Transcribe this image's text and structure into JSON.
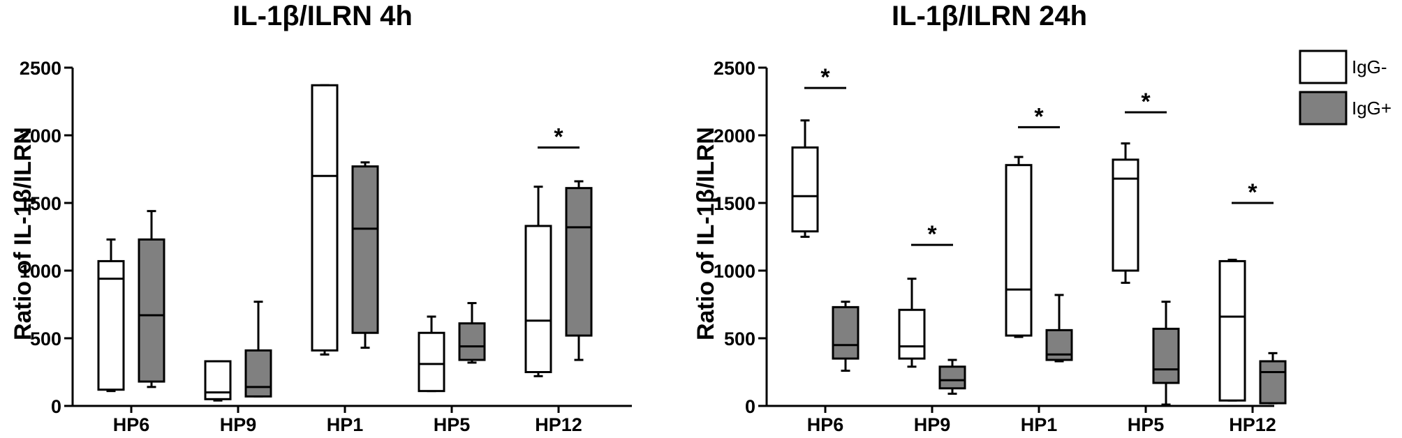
{
  "legend": {
    "placement": "top-right",
    "items": [
      {
        "label": "IgG-",
        "color": "#ffffff"
      },
      {
        "label": "IgG+",
        "color": "#808080"
      }
    ]
  },
  "chart_data": [
    {
      "type": "boxplot",
      "title": "IL-1β/ILRN 4h",
      "ylabel": "Ratio of IL-1β/ILRN",
      "xlabel": "",
      "ylim": [
        0,
        2500
      ],
      "yticks": [
        0,
        500,
        1000,
        1500,
        2000,
        2500
      ],
      "categories": [
        "HP6",
        "HP9",
        "HP1",
        "HP5",
        "HP12"
      ],
      "series": [
        {
          "name": "IgG-",
          "color": "#ffffff",
          "boxes": [
            {
              "min": 110,
              "q1": 120,
              "median": 940,
              "q3": 1070,
              "max": 1230
            },
            {
              "min": 40,
              "q1": 50,
              "median": 100,
              "q3": 330,
              "max": 330
            },
            {
              "min": 380,
              "q1": 410,
              "median": 1700,
              "q3": 2370,
              "max": 2370
            },
            {
              "min": 110,
              "q1": 110,
              "median": 310,
              "q3": 540,
              "max": 660
            },
            {
              "min": 220,
              "q1": 250,
              "median": 630,
              "q3": 1330,
              "max": 1620
            }
          ]
        },
        {
          "name": "IgG+",
          "color": "#808080",
          "boxes": [
            {
              "min": 140,
              "q1": 180,
              "median": 670,
              "q3": 1230,
              "max": 1440
            },
            {
              "min": 70,
              "q1": 70,
              "median": 140,
              "q3": 410,
              "max": 770
            },
            {
              "min": 430,
              "q1": 540,
              "median": 1310,
              "q3": 1770,
              "max": 1800
            },
            {
              "min": 320,
              "q1": 340,
              "median": 440,
              "q3": 610,
              "max": 760
            },
            {
              "min": 340,
              "q1": 520,
              "median": 1320,
              "q3": 1610,
              "max": 1660
            }
          ]
        }
      ],
      "significance": [
        {
          "category": "HP12",
          "label": "*",
          "y": 1910
        }
      ]
    },
    {
      "type": "boxplot",
      "title": "IL-1β/ILRN 24h",
      "ylabel": "Ratio of IL-1β/ILRN",
      "xlabel": "",
      "ylim": [
        0,
        2500
      ],
      "yticks": [
        0,
        500,
        1000,
        1500,
        2000,
        2500
      ],
      "categories": [
        "HP6",
        "HP9",
        "HP1",
        "HP5",
        "HP12"
      ],
      "series": [
        {
          "name": "IgG-",
          "color": "#ffffff",
          "boxes": [
            {
              "min": 1250,
              "q1": 1290,
              "median": 1550,
              "q3": 1910,
              "max": 2110
            },
            {
              "min": 290,
              "q1": 350,
              "median": 440,
              "q3": 710,
              "max": 940
            },
            {
              "min": 510,
              "q1": 520,
              "median": 860,
              "q3": 1780,
              "max": 1840
            },
            {
              "min": 910,
              "q1": 1000,
              "median": 1680,
              "q3": 1820,
              "max": 1940
            },
            {
              "min": 40,
              "q1": 40,
              "median": 660,
              "q3": 1070,
              "max": 1080
            }
          ]
        },
        {
          "name": "IgG+",
          "color": "#808080",
          "boxes": [
            {
              "min": 260,
              "q1": 350,
              "median": 450,
              "q3": 730,
              "max": 770
            },
            {
              "min": 90,
              "q1": 130,
              "median": 190,
              "q3": 290,
              "max": 340
            },
            {
              "min": 330,
              "q1": 340,
              "median": 380,
              "q3": 560,
              "max": 820
            },
            {
              "min": 10,
              "q1": 170,
              "median": 270,
              "q3": 570,
              "max": 770
            },
            {
              "min": 20,
              "q1": 20,
              "median": 250,
              "q3": 330,
              "max": 390
            }
          ]
        }
      ],
      "significance": [
        {
          "category": "HP6",
          "label": "*",
          "y": 2350
        },
        {
          "category": "HP9",
          "label": "*",
          "y": 1190
        },
        {
          "category": "HP1",
          "label": "*",
          "y": 2060
        },
        {
          "category": "HP5",
          "label": "*",
          "y": 2170
        },
        {
          "category": "HP12",
          "label": "*",
          "y": 1500
        }
      ]
    }
  ]
}
